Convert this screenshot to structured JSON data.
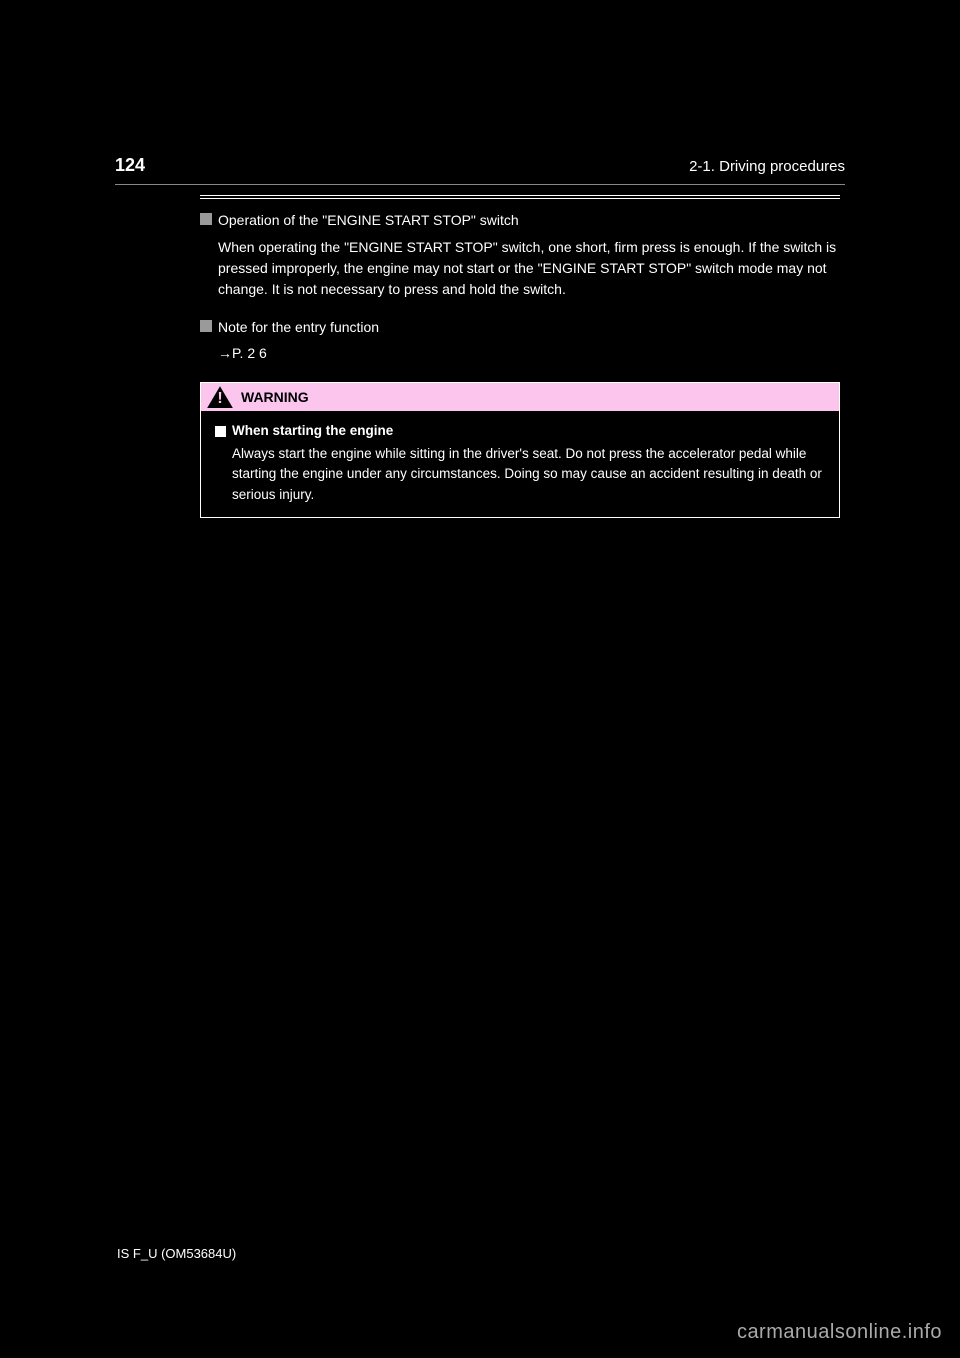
{
  "header": {
    "page_number": "124",
    "chapter": "2-1. Driving procedures"
  },
  "sections": [
    {
      "title": "Operation of the \"ENGINE START STOP\" switch",
      "body": "When operating the \"ENGINE START STOP\" switch, one short, firm press is enough. If the switch is pressed improperly, the engine may not start or the \"ENGINE START STOP\" switch mode may not change. It is not necessary to press and hold the switch."
    },
    {
      "title": "Note for the entry function",
      "body": "→P.  2 6"
    }
  ],
  "warning": {
    "label": "WARNING",
    "subtitle": "When starting the engine",
    "body": "Always start the engine while sitting in the driver's seat. Do not press the accelerator pedal while starting the engine under any circumstances. Doing so may cause an accident resulting in death or serious injury."
  },
  "footer": "IS F_U (OM53684U)",
  "watermark": "carmanualsonline.info",
  "colors": {
    "background": "#000000",
    "text": "#ffffff",
    "bullet_gray": "#9a9a9a",
    "warning_bg": "#fbc5ed",
    "divider": "#888888",
    "watermark_color": "#aaaaaa"
  }
}
